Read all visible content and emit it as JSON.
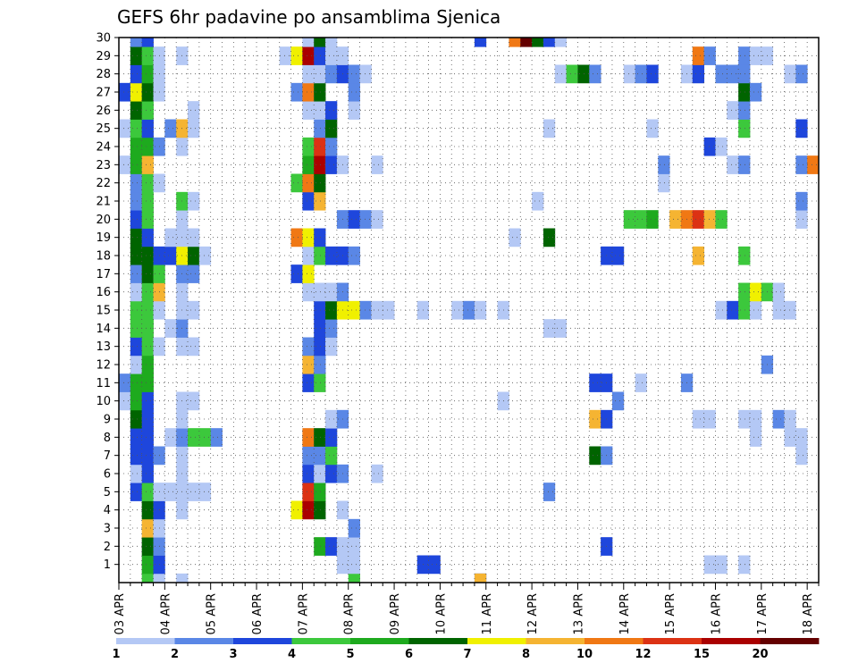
{
  "chart_data": {
    "type": "heatmap",
    "title": "GEFS 6hr padavine po ansamblima Sjenica",
    "xlabel": "",
    "ylabel": "",
    "x_ticks": [
      "03 APR",
      "04 APR",
      "05 APR",
      "06 APR",
      "07 APR",
      "08 APR",
      "09 APR",
      "10 APR",
      "11 APR",
      "12 APR",
      "13 APR",
      "14 APR",
      "15 APR",
      "16 APR",
      "17 APR",
      "18 APR"
    ],
    "x_start": "2025-04-03T00:00",
    "step_hours": 6,
    "n_steps": 61,
    "y_ticks": [
      1,
      2,
      3,
      4,
      5,
      6,
      7,
      8,
      9,
      10,
      11,
      12,
      13,
      14,
      15,
      16,
      17,
      18,
      19,
      20,
      21,
      22,
      23,
      24,
      25,
      26,
      27,
      28,
      29,
      30
    ],
    "y_range": [
      0,
      30
    ],
    "grid": true,
    "colorbar": {
      "labels": [
        "1",
        "2",
        "3",
        "4",
        "5",
        "6",
        "7",
        "8",
        "10",
        "12",
        "15",
        "20"
      ],
      "colors": [
        "#b4c8f5",
        "#5a87e6",
        "#1e46dc",
        "#3cc83c",
        "#1eaa1e",
        "#006400",
        "#f0f000",
        "#f5b432",
        "#f07814",
        "#dc3214",
        "#aa0000",
        "#640000"
      ]
    },
    "cells": [
      [
        0,
        2,
        4
      ],
      [
        0,
        3,
        1
      ],
      [
        0,
        5,
        1
      ],
      [
        0,
        20,
        4
      ],
      [
        0,
        31,
        3
      ],
      [
        0,
        31,
        8
      ],
      [
        1,
        2,
        5
      ],
      [
        1,
        3,
        3
      ],
      [
        1,
        19,
        1
      ],
      [
        1,
        20,
        1
      ],
      [
        1,
        26,
        3
      ],
      [
        1,
        27,
        3
      ],
      [
        1,
        51,
        1
      ],
      [
        1,
        52,
        1
      ],
      [
        1,
        54,
        1
      ],
      [
        2,
        2,
        6
      ],
      [
        2,
        3,
        2
      ],
      [
        2,
        17,
        5
      ],
      [
        2,
        18,
        3
      ],
      [
        2,
        19,
        1
      ],
      [
        2,
        20,
        1
      ],
      [
        2,
        42,
        3
      ],
      [
        3,
        2,
        8
      ],
      [
        3,
        3,
        1
      ],
      [
        3,
        20,
        2
      ],
      [
        4,
        2,
        6
      ],
      [
        4,
        3,
        3
      ],
      [
        4,
        5,
        1
      ],
      [
        4,
        15,
        7
      ],
      [
        4,
        16,
        11
      ],
      [
        4,
        17,
        6
      ],
      [
        4,
        19,
        1
      ],
      [
        5,
        1,
        3
      ],
      [
        5,
        2,
        4
      ],
      [
        5,
        3,
        1
      ],
      [
        5,
        4,
        1
      ],
      [
        5,
        5,
        1
      ],
      [
        5,
        6,
        1
      ],
      [
        5,
        7,
        1
      ],
      [
        5,
        16,
        10
      ],
      [
        5,
        17,
        5
      ],
      [
        5,
        37,
        2
      ],
      [
        6,
        1,
        1
      ],
      [
        6,
        2,
        3
      ],
      [
        6,
        5,
        1
      ],
      [
        6,
        16,
        3
      ],
      [
        6,
        17,
        1
      ],
      [
        6,
        18,
        3
      ],
      [
        6,
        19,
        2
      ],
      [
        6,
        22,
        1
      ],
      [
        7,
        1,
        3
      ],
      [
        7,
        2,
        3
      ],
      [
        7,
        3,
        2
      ],
      [
        7,
        5,
        1
      ],
      [
        7,
        16,
        2
      ],
      [
        7,
        17,
        2
      ],
      [
        7,
        18,
        4
      ],
      [
        7,
        41,
        6
      ],
      [
        7,
        42,
        2
      ],
      [
        7,
        59,
        1
      ],
      [
        8,
        1,
        3
      ],
      [
        8,
        2,
        3
      ],
      [
        8,
        4,
        1
      ],
      [
        8,
        5,
        2
      ],
      [
        8,
        6,
        4
      ],
      [
        8,
        7,
        4
      ],
      [
        8,
        8,
        2
      ],
      [
        8,
        16,
        9
      ],
      [
        8,
        17,
        6
      ],
      [
        8,
        18,
        3
      ],
      [
        8,
        55,
        1
      ],
      [
        8,
        58,
        1
      ],
      [
        8,
        59,
        1
      ],
      [
        9,
        1,
        6
      ],
      [
        9,
        2,
        3
      ],
      [
        9,
        5,
        1
      ],
      [
        9,
        18,
        1
      ],
      [
        9,
        19,
        2
      ],
      [
        9,
        41,
        8
      ],
      [
        9,
        42,
        3
      ],
      [
        9,
        50,
        1
      ],
      [
        9,
        51,
        1
      ],
      [
        9,
        54,
        1
      ],
      [
        9,
        55,
        1
      ],
      [
        9,
        57,
        2
      ],
      [
        9,
        58,
        1
      ],
      [
        10,
        0,
        1
      ],
      [
        10,
        1,
        5
      ],
      [
        10,
        2,
        3
      ],
      [
        10,
        5,
        1
      ],
      [
        10,
        6,
        1
      ],
      [
        10,
        33,
        1
      ],
      [
        10,
        43,
        2
      ],
      [
        11,
        0,
        2
      ],
      [
        11,
        1,
        5
      ],
      [
        11,
        2,
        5
      ],
      [
        11,
        16,
        3
      ],
      [
        11,
        17,
        4
      ],
      [
        11,
        41,
        3
      ],
      [
        11,
        42,
        3
      ],
      [
        11,
        45,
        1
      ],
      [
        11,
        49,
        2
      ],
      [
        12,
        1,
        1
      ],
      [
        12,
        2,
        5
      ],
      [
        12,
        16,
        8
      ],
      [
        12,
        17,
        2
      ],
      [
        12,
        56,
        2
      ],
      [
        13,
        1,
        3
      ],
      [
        13,
        2,
        4
      ],
      [
        13,
        3,
        1
      ],
      [
        13,
        5,
        1
      ],
      [
        13,
        6,
        1
      ],
      [
        13,
        16,
        2
      ],
      [
        13,
        17,
        3
      ],
      [
        13,
        18,
        1
      ],
      [
        14,
        1,
        4
      ],
      [
        14,
        2,
        4
      ],
      [
        14,
        4,
        1
      ],
      [
        14,
        5,
        2
      ],
      [
        14,
        17,
        3
      ],
      [
        14,
        18,
        2
      ],
      [
        14,
        37,
        1
      ],
      [
        14,
        38,
        1
      ],
      [
        15,
        1,
        4
      ],
      [
        15,
        2,
        4
      ],
      [
        15,
        3,
        1
      ],
      [
        15,
        5,
        1
      ],
      [
        15,
        6,
        1
      ],
      [
        15,
        17,
        3
      ],
      [
        15,
        18,
        6
      ],
      [
        15,
        19,
        7
      ],
      [
        15,
        20,
        7
      ],
      [
        15,
        21,
        2
      ],
      [
        15,
        22,
        1
      ],
      [
        15,
        23,
        1
      ],
      [
        15,
        26,
        1
      ],
      [
        15,
        29,
        1
      ],
      [
        15,
        30,
        2
      ],
      [
        15,
        31,
        1
      ],
      [
        15,
        33,
        1
      ],
      [
        15,
        52,
        1
      ],
      [
        15,
        53,
        3
      ],
      [
        15,
        54,
        4
      ],
      [
        15,
        55,
        1
      ],
      [
        15,
        57,
        1
      ],
      [
        15,
        58,
        1
      ],
      [
        16,
        1,
        1
      ],
      [
        16,
        2,
        4
      ],
      [
        16,
        3,
        8
      ],
      [
        16,
        5,
        1
      ],
      [
        16,
        16,
        1
      ],
      [
        16,
        17,
        1
      ],
      [
        16,
        18,
        1
      ],
      [
        16,
        19,
        2
      ],
      [
        16,
        54,
        4
      ],
      [
        16,
        55,
        7
      ],
      [
        16,
        56,
        4
      ],
      [
        16,
        57,
        1
      ],
      [
        17,
        1,
        2
      ],
      [
        17,
        2,
        6
      ],
      [
        17,
        3,
        4
      ],
      [
        17,
        5,
        2
      ],
      [
        17,
        6,
        2
      ],
      [
        17,
        15,
        3
      ],
      [
        17,
        16,
        7
      ],
      [
        18,
        1,
        6
      ],
      [
        18,
        2,
        6
      ],
      [
        18,
        3,
        3
      ],
      [
        18,
        4,
        3
      ],
      [
        18,
        5,
        7
      ],
      [
        18,
        6,
        6
      ],
      [
        18,
        7,
        1
      ],
      [
        18,
        16,
        1
      ],
      [
        18,
        17,
        4
      ],
      [
        18,
        18,
        3
      ],
      [
        18,
        19,
        3
      ],
      [
        18,
        20,
        2
      ],
      [
        18,
        42,
        3
      ],
      [
        18,
        43,
        3
      ],
      [
        18,
        50,
        8
      ],
      [
        18,
        54,
        4
      ],
      [
        19,
        1,
        6
      ],
      [
        19,
        2,
        3
      ],
      [
        19,
        4,
        1
      ],
      [
        19,
        5,
        1
      ],
      [
        19,
        6,
        1
      ],
      [
        19,
        15,
        9
      ],
      [
        19,
        16,
        7
      ],
      [
        19,
        17,
        3
      ],
      [
        19,
        34,
        1
      ],
      [
        19,
        37,
        6
      ],
      [
        20,
        1,
        3
      ],
      [
        20,
        2,
        4
      ],
      [
        20,
        5,
        1
      ],
      [
        20,
        19,
        2
      ],
      [
        20,
        20,
        3
      ],
      [
        20,
        21,
        2
      ],
      [
        20,
        22,
        1
      ],
      [
        20,
        44,
        4
      ],
      [
        20,
        45,
        4
      ],
      [
        20,
        46,
        5
      ],
      [
        20,
        48,
        8
      ],
      [
        20,
        49,
        9
      ],
      [
        20,
        50,
        10
      ],
      [
        20,
        51,
        8
      ],
      [
        20,
        52,
        4
      ],
      [
        20,
        59,
        1
      ],
      [
        21,
        1,
        2
      ],
      [
        21,
        2,
        4
      ],
      [
        21,
        5,
        4
      ],
      [
        21,
        6,
        1
      ],
      [
        21,
        16,
        3
      ],
      [
        21,
        17,
        8
      ],
      [
        21,
        36,
        1
      ],
      [
        21,
        59,
        2
      ],
      [
        22,
        1,
        2
      ],
      [
        22,
        2,
        4
      ],
      [
        22,
        3,
        1
      ],
      [
        22,
        15,
        4
      ],
      [
        22,
        16,
        9
      ],
      [
        22,
        17,
        6
      ],
      [
        22,
        47,
        1
      ],
      [
        23,
        0,
        1
      ],
      [
        23,
        1,
        5
      ],
      [
        23,
        2,
        8
      ],
      [
        23,
        16,
        5
      ],
      [
        23,
        17,
        11
      ],
      [
        23,
        18,
        3
      ],
      [
        23,
        19,
        1
      ],
      [
        23,
        22,
        1
      ],
      [
        23,
        47,
        2
      ],
      [
        23,
        53,
        1
      ],
      [
        23,
        54,
        2
      ],
      [
        23,
        59,
        2
      ],
      [
        23,
        60,
        9
      ],
      [
        24,
        1,
        5
      ],
      [
        24,
        2,
        5
      ],
      [
        24,
        3,
        2
      ],
      [
        24,
        5,
        1
      ],
      [
        24,
        16,
        4
      ],
      [
        24,
        17,
        10
      ],
      [
        24,
        18,
        2
      ],
      [
        24,
        51,
        3
      ],
      [
        24,
        52,
        1
      ],
      [
        25,
        0,
        1
      ],
      [
        25,
        1,
        4
      ],
      [
        25,
        2,
        3
      ],
      [
        25,
        4,
        2
      ],
      [
        25,
        5,
        8
      ],
      [
        25,
        6,
        1
      ],
      [
        25,
        17,
        2
      ],
      [
        25,
        18,
        6
      ],
      [
        25,
        37,
        1
      ],
      [
        25,
        46,
        1
      ],
      [
        25,
        54,
        4
      ],
      [
        25,
        59,
        3
      ],
      [
        26,
        1,
        6
      ],
      [
        26,
        2,
        4
      ],
      [
        26,
        6,
        1
      ],
      [
        26,
        16,
        1
      ],
      [
        26,
        17,
        1
      ],
      [
        26,
        18,
        3
      ],
      [
        26,
        20,
        1
      ],
      [
        26,
        53,
        1
      ],
      [
        26,
        54,
        2
      ],
      [
        27,
        0,
        3
      ],
      [
        27,
        1,
        7
      ],
      [
        27,
        2,
        6
      ],
      [
        27,
        3,
        1
      ],
      [
        27,
        15,
        2
      ],
      [
        27,
        16,
        9
      ],
      [
        27,
        17,
        6
      ],
      [
        27,
        20,
        2
      ],
      [
        27,
        54,
        6
      ],
      [
        27,
        55,
        2
      ],
      [
        28,
        1,
        3
      ],
      [
        28,
        2,
        5
      ],
      [
        28,
        3,
        1
      ],
      [
        28,
        16,
        1
      ],
      [
        28,
        17,
        1
      ],
      [
        28,
        18,
        2
      ],
      [
        28,
        19,
        3
      ],
      [
        28,
        20,
        2
      ],
      [
        28,
        21,
        1
      ],
      [
        28,
        38,
        1
      ],
      [
        28,
        39,
        4
      ],
      [
        28,
        40,
        6
      ],
      [
        28,
        41,
        2
      ],
      [
        28,
        44,
        1
      ],
      [
        28,
        45,
        2
      ],
      [
        28,
        46,
        3
      ],
      [
        28,
        49,
        1
      ],
      [
        28,
        50,
        3
      ],
      [
        28,
        52,
        2
      ],
      [
        28,
        53,
        2
      ],
      [
        28,
        54,
        2
      ],
      [
        28,
        58,
        1
      ],
      [
        28,
        59,
        2
      ],
      [
        29,
        1,
        6
      ],
      [
        29,
        2,
        4
      ],
      [
        29,
        3,
        1
      ],
      [
        29,
        5,
        1
      ],
      [
        29,
        14,
        1
      ],
      [
        29,
        15,
        7
      ],
      [
        29,
        16,
        11
      ],
      [
        29,
        17,
        3
      ],
      [
        29,
        18,
        1
      ],
      [
        29,
        19,
        1
      ],
      [
        29,
        50,
        9
      ],
      [
        29,
        51,
        2
      ],
      [
        29,
        54,
        2
      ],
      [
        29,
        55,
        1
      ],
      [
        29,
        56,
        1
      ],
      [
        30,
        1,
        2
      ],
      [
        30,
        2,
        3
      ],
      [
        30,
        16,
        1
      ],
      [
        30,
        17,
        6
      ],
      [
        30,
        18,
        1
      ],
      [
        30,
        31,
        3
      ],
      [
        30,
        34,
        9
      ],
      [
        30,
        35,
        12
      ],
      [
        30,
        36,
        6
      ],
      [
        30,
        37,
        3
      ],
      [
        30,
        38,
        1
      ]
    ]
  }
}
